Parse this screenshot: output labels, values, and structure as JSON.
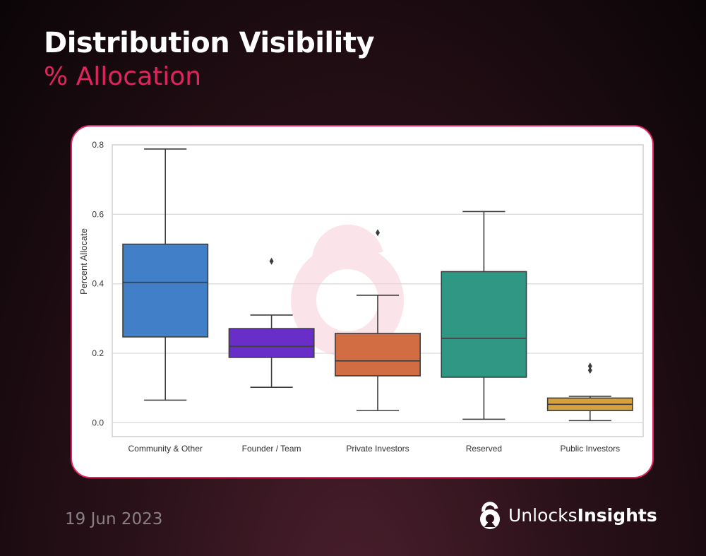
{
  "header": {
    "title": "Distribution Visibility",
    "subtitle": "% Allocation"
  },
  "footer": {
    "date": "19 Jun 2023",
    "brand_light": "Unlocks",
    "brand_bold": "Insights"
  },
  "colors": {
    "accent": "#e0245e"
  },
  "chart_data": {
    "type": "box",
    "title": "",
    "xlabel": "",
    "ylabel": "Percent Allocate",
    "ylim": [
      -0.04,
      0.8
    ],
    "yticks": [
      "0.0",
      "0.2",
      "0.4",
      "0.6",
      "0.8"
    ],
    "grid": true,
    "categories": [
      "Community & Other",
      "Founder / Team",
      "Private Investors",
      "Reserved",
      "Public Investors"
    ],
    "boxes": [
      {
        "category": "Community & Other",
        "whisker_low": 0.065,
        "q1": 0.247,
        "median": 0.404,
        "q3": 0.514,
        "whisker_high": 0.788,
        "outliers": [],
        "color": "#4180c9"
      },
      {
        "category": "Founder / Team",
        "whisker_low": 0.102,
        "q1": 0.188,
        "median": 0.22,
        "q3": 0.271,
        "whisker_high": 0.31,
        "outliers": [
          0.465
        ],
        "color": "#6a2ec8"
      },
      {
        "category": "Private Investors",
        "whisker_low": 0.035,
        "q1": 0.135,
        "median": 0.178,
        "q3": 0.257,
        "whisker_high": 0.367,
        "outliers": [
          0.547
        ],
        "color": "#d26d43"
      },
      {
        "category": "Reserved",
        "whisker_low": 0.01,
        "q1": 0.131,
        "median": 0.243,
        "q3": 0.435,
        "whisker_high": 0.608,
        "outliers": [],
        "color": "#319785"
      },
      {
        "category": "Public Investors",
        "whisker_low": 0.006,
        "q1": 0.035,
        "median": 0.053,
        "q3": 0.071,
        "whisker_high": 0.076,
        "outliers": [
          0.151,
          0.163
        ],
        "color": "#d4a040"
      }
    ]
  }
}
